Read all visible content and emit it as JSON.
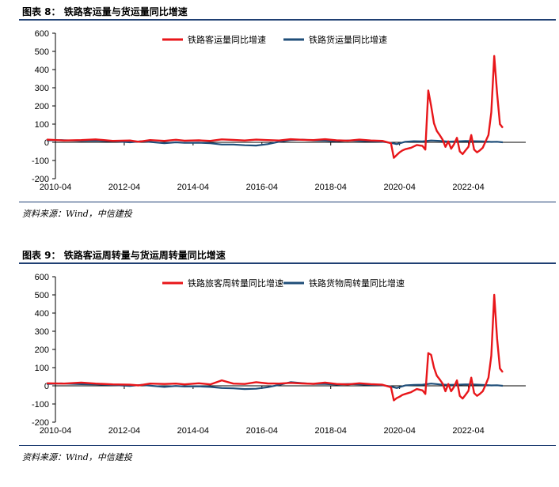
{
  "chart_data": [
    {
      "type": "line",
      "caption_label": "图表 8：",
      "title": "铁路客运量与货运量同比增速",
      "source": "资料来源：Wind，中信建投",
      "ylim": [
        -200,
        600
      ],
      "yticks": [
        "600",
        "500",
        "400",
        "300",
        "200",
        "100",
        "0",
        "-100",
        "-200"
      ],
      "xlim": [
        "2010-04",
        "2023-12"
      ],
      "xticks": [
        "2010-04",
        "2012-04",
        "2014-04",
        "2016-04",
        "2018-04",
        "2020-04",
        "2022-04"
      ],
      "legend_position": "top",
      "grid": false,
      "series": [
        {
          "name": "铁路客运量同比增速",
          "color": "#e8161a",
          "points": [
            [
              "2010-01",
              15
            ],
            [
              "2010-07",
              10
            ],
            [
              "2011-01",
              12
            ],
            [
              "2011-06",
              16
            ],
            [
              "2011-12",
              8
            ],
            [
              "2012-06",
              10
            ],
            [
              "2012-09",
              3
            ],
            [
              "2013-01",
              12
            ],
            [
              "2013-06",
              8
            ],
            [
              "2013-10",
              14
            ],
            [
              "2014-01",
              9
            ],
            [
              "2014-06",
              11
            ],
            [
              "2014-10",
              8
            ],
            [
              "2015-02",
              16
            ],
            [
              "2015-06",
              13
            ],
            [
              "2015-10",
              10
            ],
            [
              "2016-02",
              15
            ],
            [
              "2016-06",
              12
            ],
            [
              "2016-10",
              10
            ],
            [
              "2017-02",
              17
            ],
            [
              "2017-06",
              14
            ],
            [
              "2017-10",
              12
            ],
            [
              "2018-02",
              17
            ],
            [
              "2018-06",
              11
            ],
            [
              "2018-10",
              9
            ],
            [
              "2019-02",
              15
            ],
            [
              "2019-06",
              10
            ],
            [
              "2019-10",
              8
            ],
            [
              "2020-01",
              -5
            ],
            [
              "2020-02",
              -85
            ],
            [
              "2020-03",
              -70
            ],
            [
              "2020-04",
              -55
            ],
            [
              "2020-05",
              -45
            ],
            [
              "2020-06",
              -38
            ],
            [
              "2020-08",
              -30
            ],
            [
              "2020-10",
              -15
            ],
            [
              "2020-12",
              -20
            ],
            [
              "2021-01",
              -40
            ],
            [
              "2021-02",
              285
            ],
            [
              "2021-03",
              200
            ],
            [
              "2021-04",
              105
            ],
            [
              "2021-05",
              62
            ],
            [
              "2021-06",
              40
            ],
            [
              "2021-07",
              15
            ],
            [
              "2021-08",
              -25
            ],
            [
              "2021-09",
              5
            ],
            [
              "2021-10",
              -35
            ],
            [
              "2021-11",
              -10
            ],
            [
              "2021-12",
              25
            ],
            [
              "2022-01",
              -50
            ],
            [
              "2022-02",
              -65
            ],
            [
              "2022-03",
              -45
            ],
            [
              "2022-04",
              -25
            ],
            [
              "2022-05",
              40
            ],
            [
              "2022-06",
              -40
            ],
            [
              "2022-07",
              -55
            ],
            [
              "2022-08",
              -45
            ],
            [
              "2022-09",
              -30
            ],
            [
              "2022-10",
              5
            ],
            [
              "2022-11",
              40
            ],
            [
              "2022-12",
              165
            ],
            [
              "2023-01",
              475
            ],
            [
              "2023-02",
              270
            ],
            [
              "2023-03",
              100
            ],
            [
              "2023-04",
              80
            ]
          ]
        },
        {
          "name": "铁路货运量同比增速",
          "color": "#1f4e79",
          "points": [
            [
              "2010-01",
              10
            ],
            [
              "2010-06",
              12
            ],
            [
              "2011-01",
              8
            ],
            [
              "2011-06",
              9
            ],
            [
              "2012-01",
              5
            ],
            [
              "2012-06",
              0
            ],
            [
              "2012-10",
              6
            ],
            [
              "2013-01",
              2
            ],
            [
              "2013-06",
              -5
            ],
            [
              "2013-10",
              0
            ],
            [
              "2014-01",
              -3
            ],
            [
              "2014-06",
              -2
            ],
            [
              "2014-10",
              -5
            ],
            [
              "2015-02",
              -12
            ],
            [
              "2015-06",
              -12
            ],
            [
              "2015-10",
              -16
            ],
            [
              "2016-02",
              -18
            ],
            [
              "2016-06",
              -10
            ],
            [
              "2016-10",
              3
            ],
            [
              "2017-02",
              12
            ],
            [
              "2017-06",
              15
            ],
            [
              "2017-10",
              10
            ],
            [
              "2018-02",
              9
            ],
            [
              "2018-06",
              6
            ],
            [
              "2018-10",
              10
            ],
            [
              "2019-02",
              8
            ],
            [
              "2019-06",
              6
            ],
            [
              "2019-10",
              3
            ],
            [
              "2020-01",
              -3
            ],
            [
              "2020-03",
              -10
            ],
            [
              "2020-06",
              3
            ],
            [
              "2020-09",
              6
            ],
            [
              "2020-12",
              5
            ],
            [
              "2021-03",
              10
            ],
            [
              "2021-06",
              8
            ],
            [
              "2021-09",
              4
            ],
            [
              "2021-12",
              5
            ],
            [
              "2022-03",
              7
            ],
            [
              "2022-06",
              6
            ],
            [
              "2022-09",
              5
            ],
            [
              "2022-12",
              2
            ],
            [
              "2023-02",
              3
            ],
            [
              "2023-04",
              0
            ]
          ]
        }
      ]
    },
    {
      "type": "line",
      "caption_label": "图表 9：",
      "title": "铁路客运周转量与货运周转量同比增速",
      "source": "资料来源：Wind，中信建投",
      "ylim": [
        -200,
        600
      ],
      "yticks": [
        "600",
        "500",
        "400",
        "300",
        "200",
        "100",
        "0",
        "-100",
        "-200"
      ],
      "xlim": [
        "2010-04",
        "2023-12"
      ],
      "xticks": [
        "2010-04",
        "2012-04",
        "2014-04",
        "2016-04",
        "2018-04",
        "2020-04",
        "2022-04"
      ],
      "legend_position": "top",
      "grid": false,
      "series": [
        {
          "name": "铁路旅客周转量同比增速",
          "color": "#e8161a",
          "points": [
            [
              "2010-01",
              14
            ],
            [
              "2010-07",
              12
            ],
            [
              "2011-01",
              18
            ],
            [
              "2011-06",
              12
            ],
            [
              "2011-12",
              8
            ],
            [
              "2012-06",
              6
            ],
            [
              "2012-09",
              2
            ],
            [
              "2013-01",
              12
            ],
            [
              "2013-06",
              10
            ],
            [
              "2013-10",
              12
            ],
            [
              "2014-01",
              8
            ],
            [
              "2014-06",
              14
            ],
            [
              "2014-10",
              8
            ],
            [
              "2015-02",
              30
            ],
            [
              "2015-06",
              12
            ],
            [
              "2015-10",
              10
            ],
            [
              "2016-02",
              20
            ],
            [
              "2016-06",
              13
            ],
            [
              "2016-10",
              12
            ],
            [
              "2017-02",
              16
            ],
            [
              "2017-06",
              13
            ],
            [
              "2017-10",
              11
            ],
            [
              "2018-02",
              18
            ],
            [
              "2018-06",
              10
            ],
            [
              "2018-10",
              8
            ],
            [
              "2019-02",
              14
            ],
            [
              "2019-06",
              9
            ],
            [
              "2019-10",
              6
            ],
            [
              "2020-01",
              -8
            ],
            [
              "2020-02",
              -80
            ],
            [
              "2020-03",
              -68
            ],
            [
              "2020-04",
              -60
            ],
            [
              "2020-05",
              -50
            ],
            [
              "2020-06",
              -45
            ],
            [
              "2020-08",
              -35
            ],
            [
              "2020-10",
              -18
            ],
            [
              "2020-12",
              -25
            ],
            [
              "2021-01",
              -45
            ],
            [
              "2021-02",
              180
            ],
            [
              "2021-03",
              170
            ],
            [
              "2021-04",
              100
            ],
            [
              "2021-05",
              55
            ],
            [
              "2021-06",
              35
            ],
            [
              "2021-07",
              12
            ],
            [
              "2021-08",
              -30
            ],
            [
              "2021-09",
              10
            ],
            [
              "2021-10",
              -30
            ],
            [
              "2021-11",
              -5
            ],
            [
              "2021-12",
              30
            ],
            [
              "2022-01",
              -55
            ],
            [
              "2022-02",
              -70
            ],
            [
              "2022-03",
              -50
            ],
            [
              "2022-04",
              -28
            ],
            [
              "2022-05",
              45
            ],
            [
              "2022-06",
              -40
            ],
            [
              "2022-07",
              -55
            ],
            [
              "2022-08",
              -45
            ],
            [
              "2022-09",
              -30
            ],
            [
              "2022-10",
              5
            ],
            [
              "2022-11",
              45
            ],
            [
              "2022-12",
              165
            ],
            [
              "2023-01",
              500
            ],
            [
              "2023-02",
              260
            ],
            [
              "2023-03",
              95
            ],
            [
              "2023-04",
              75
            ]
          ]
        },
        {
          "name": "铁路货物周转量同比增速",
          "color": "#1f4e79",
          "points": [
            [
              "2010-01",
              10
            ],
            [
              "2010-06",
              13
            ],
            [
              "2011-01",
              9
            ],
            [
              "2011-06",
              8
            ],
            [
              "2012-01",
              4
            ],
            [
              "2012-06",
              -1
            ],
            [
              "2012-10",
              5
            ],
            [
              "2013-01",
              1
            ],
            [
              "2013-06",
              -6
            ],
            [
              "2013-10",
              -1
            ],
            [
              "2014-01",
              -4
            ],
            [
              "2014-06",
              -3
            ],
            [
              "2014-10",
              -6
            ],
            [
              "2015-02",
              -12
            ],
            [
              "2015-06",
              -14
            ],
            [
              "2015-10",
              -18
            ],
            [
              "2016-02",
              -16
            ],
            [
              "2016-06",
              -8
            ],
            [
              "2016-10",
              5
            ],
            [
              "2017-02",
              20
            ],
            [
              "2017-06",
              15
            ],
            [
              "2017-10",
              10
            ],
            [
              "2018-02",
              10
            ],
            [
              "2018-06",
              7
            ],
            [
              "2018-10",
              10
            ],
            [
              "2019-02",
              8
            ],
            [
              "2019-06",
              5
            ],
            [
              "2019-10",
              3
            ],
            [
              "2020-01",
              -4
            ],
            [
              "2020-03",
              -12
            ],
            [
              "2020-06",
              2
            ],
            [
              "2020-09",
              5
            ],
            [
              "2020-12",
              6
            ],
            [
              "2021-03",
              12
            ],
            [
              "2021-06",
              8
            ],
            [
              "2021-09",
              5
            ],
            [
              "2021-12",
              6
            ],
            [
              "2022-03",
              8
            ],
            [
              "2022-06",
              7
            ],
            [
              "2022-09",
              5
            ],
            [
              "2022-12",
              2
            ],
            [
              "2023-02",
              3
            ],
            [
              "2023-04",
              0
            ]
          ]
        }
      ]
    }
  ]
}
